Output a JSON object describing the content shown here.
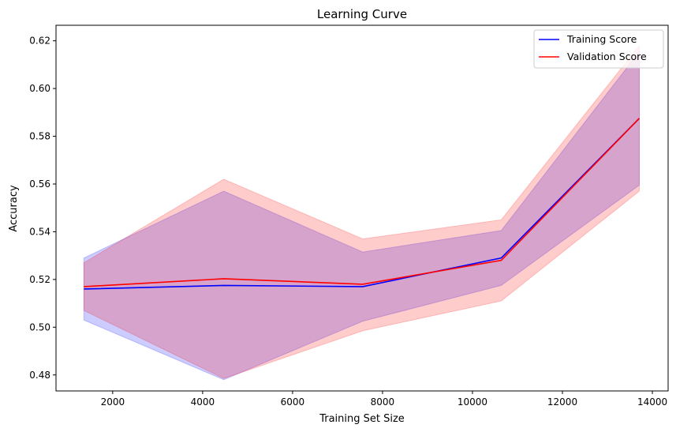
{
  "chart_data": {
    "type": "line",
    "title": "Learning Curve",
    "xlabel": "Training Set Size",
    "ylabel": "Accuracy",
    "xlim": [
      740,
      14350
    ],
    "ylim": [
      0.4733,
      0.6265
    ],
    "xticks": [
      2000,
      4000,
      6000,
      8000,
      10000,
      12000,
      14000
    ],
    "yticks": [
      0.48,
      0.5,
      0.52,
      0.54,
      0.56,
      0.58,
      0.6,
      0.62
    ],
    "x": [
      1360,
      4470,
      7560,
      10640,
      13710
    ],
    "grid": false,
    "legend_position": "top-right",
    "series": [
      {
        "name": "Training Score",
        "color": "#0000ff",
        "band_color": "#0000ff",
        "band_opacity": 0.2,
        "values": [
          0.516,
          0.5175,
          0.517,
          0.529,
          0.5875
        ],
        "lower": [
          0.503,
          0.478,
          0.5025,
          0.5175,
          0.5595
        ],
        "upper": [
          0.529,
          0.557,
          0.5315,
          0.5405,
          0.6155
        ]
      },
      {
        "name": "Validation Score",
        "color": "#ff0000",
        "band_color": "#ff0000",
        "band_opacity": 0.2,
        "values": [
          0.517,
          0.5203,
          0.518,
          0.528,
          0.5875
        ],
        "lower": [
          0.507,
          0.4785,
          0.4985,
          0.511,
          0.557
        ],
        "upper": [
          0.527,
          0.562,
          0.537,
          0.545,
          0.618
        ]
      }
    ]
  }
}
